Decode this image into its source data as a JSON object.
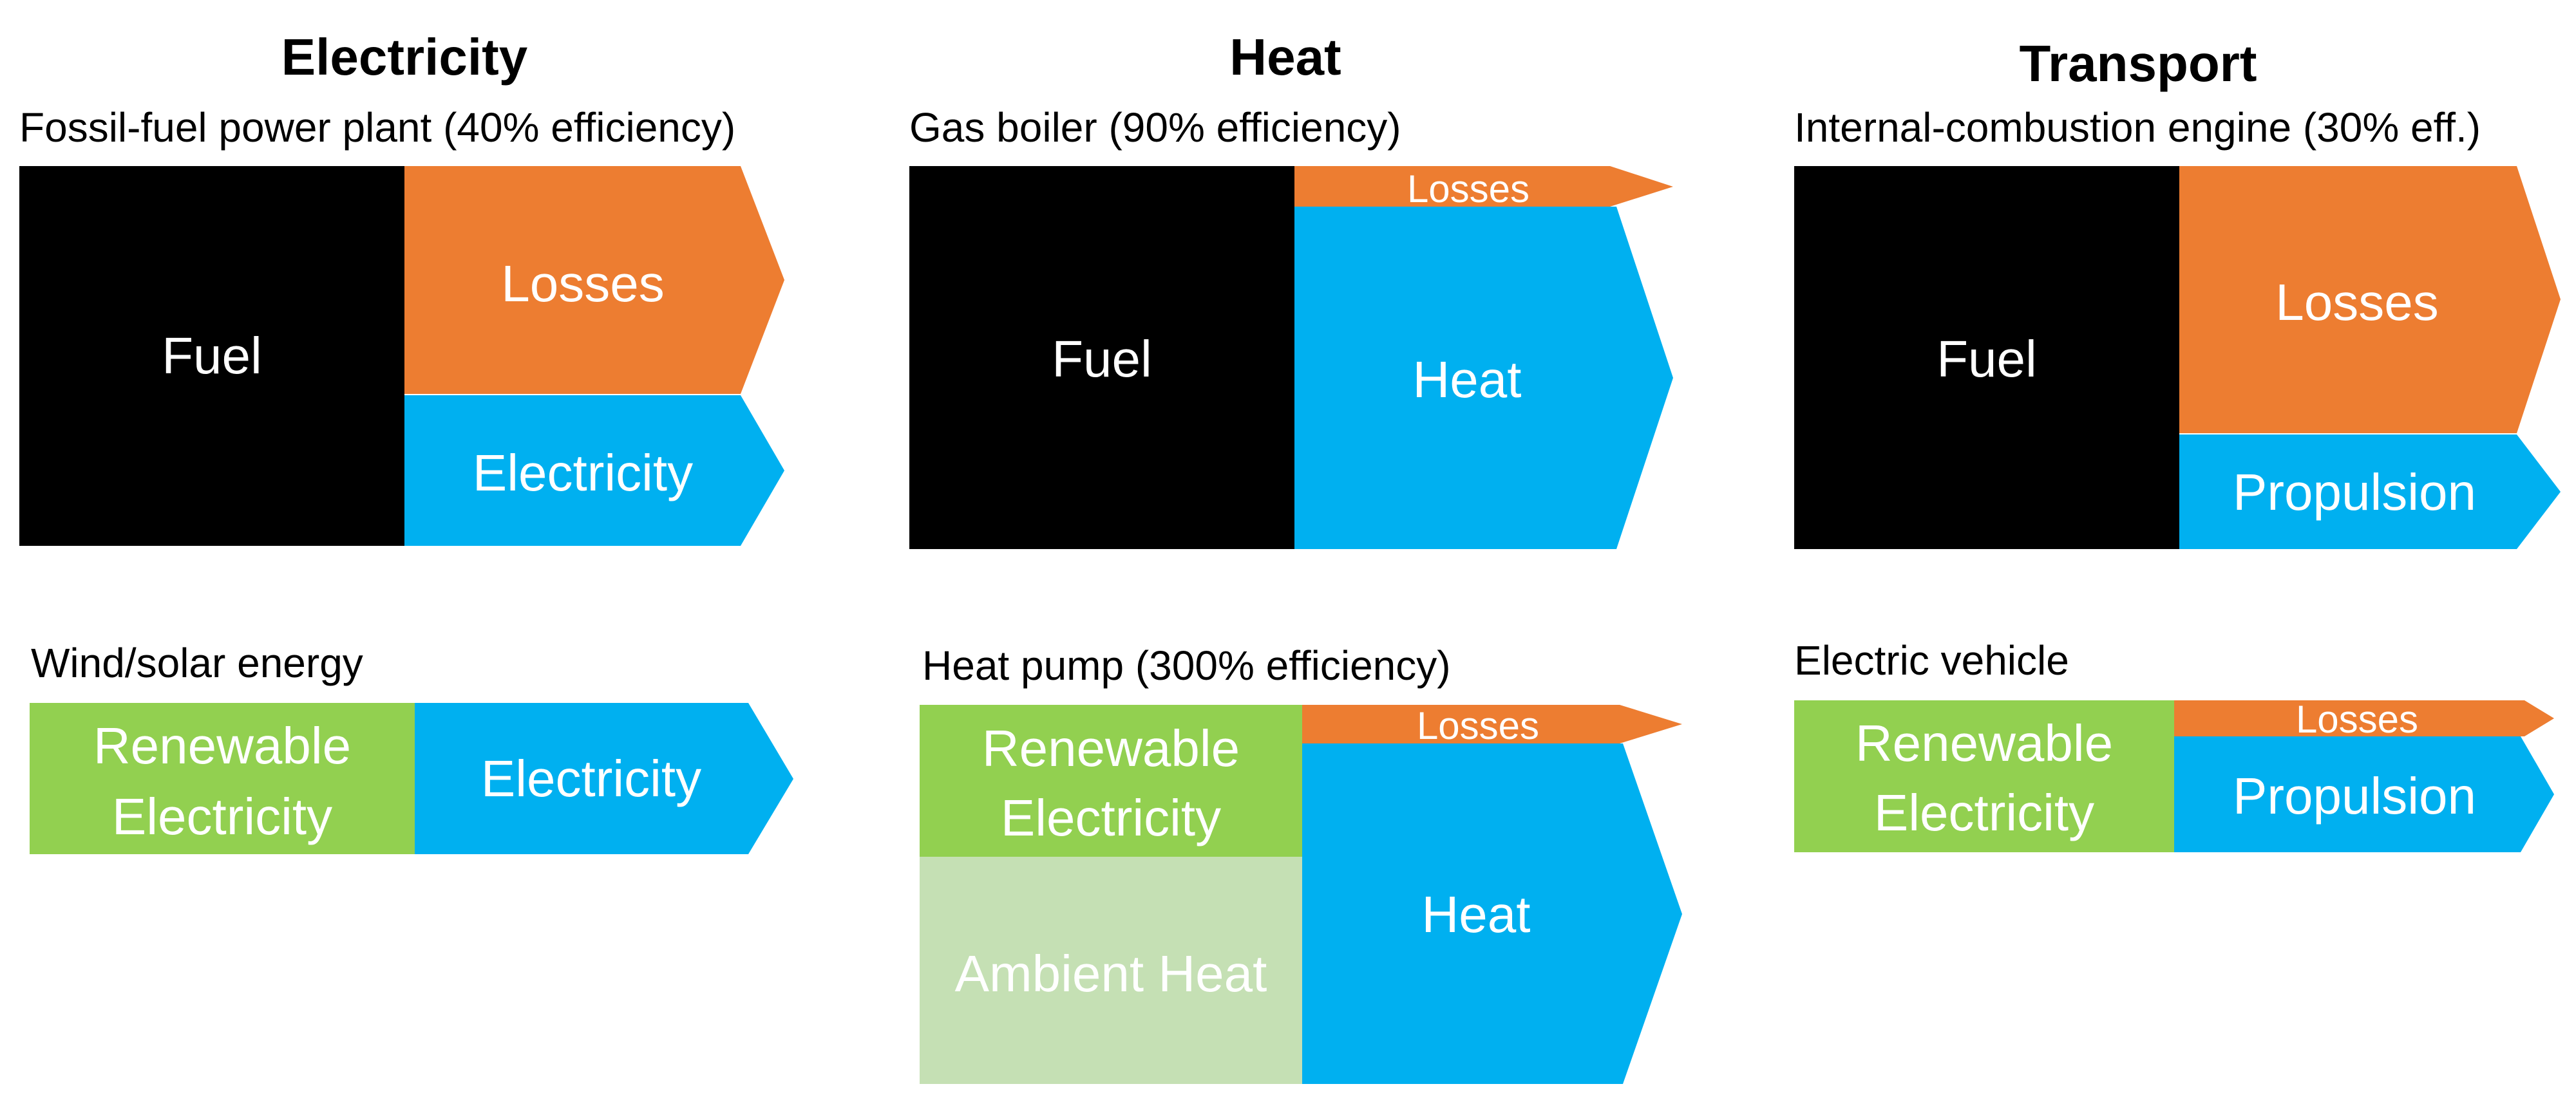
{
  "colors": {
    "fuel": "#000000",
    "losses": "#ED7D31",
    "output": "#00B0F0",
    "renewable": "#92D050",
    "ambient": "#C5E0B4",
    "label": "#FFFFFF"
  },
  "columns": {
    "electricity": {
      "header": "Electricity",
      "top": {
        "title": "Fossil-fuel power plant (40% efficiency)",
        "input": "Fuel",
        "losses": "Losses",
        "output": "Electricity"
      },
      "bottom": {
        "title": "Wind/solar energy",
        "input_line1": "Renewable",
        "input_line2": "Electricity",
        "output": "Electricity"
      }
    },
    "heat": {
      "header": "Heat",
      "top": {
        "title": "Gas boiler (90% efficiency)",
        "input": "Fuel",
        "losses": "Losses",
        "output": "Heat"
      },
      "bottom": {
        "title": "Heat pump (300% efficiency)",
        "input_line1": "Renewable",
        "input_line2": "Electricity",
        "ambient": "Ambient Heat",
        "losses": "Losses",
        "output": "Heat"
      }
    },
    "transport": {
      "header": "Transport",
      "top": {
        "title": "Internal-combustion engine (30% eff.)",
        "input": "Fuel",
        "losses": "Losses",
        "output": "Propulsion"
      },
      "bottom": {
        "title": "Electric vehicle",
        "input_line1": "Renewable",
        "input_line2": "Electricity",
        "losses": "Losses",
        "output": "Propulsion"
      }
    }
  }
}
